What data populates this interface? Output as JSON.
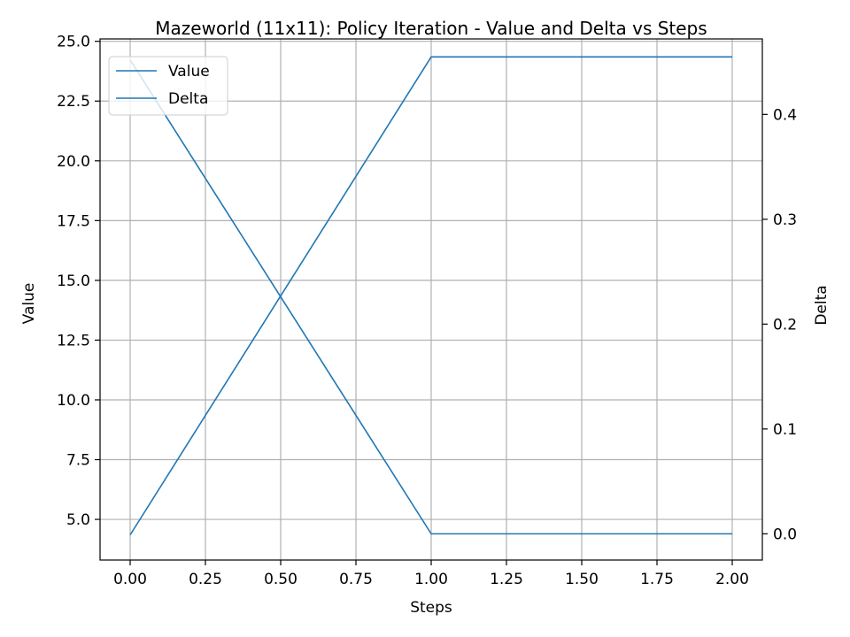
{
  "chart_data": {
    "type": "line",
    "title": "Mazeworld (11x11): Policy Iteration - Value and Delta vs Steps",
    "xlabel": "Steps",
    "ylabel_left": "Value",
    "ylabel_right": "Delta",
    "xlim": [
      -0.1,
      2.1
    ],
    "ylim_left": [
      3.3,
      25.1
    ],
    "ylim_right": [
      -0.025,
      0.472
    ],
    "xticks": [
      "0.00",
      "0.25",
      "0.50",
      "0.75",
      "1.00",
      "1.25",
      "1.50",
      "1.75",
      "2.00"
    ],
    "yticks_left": [
      "5.0",
      "7.5",
      "10.0",
      "12.5",
      "15.0",
      "17.5",
      "20.0",
      "22.5",
      "25.0"
    ],
    "yticks_right": [
      "0.0",
      "0.1",
      "0.2",
      "0.3",
      "0.4"
    ],
    "grid": true,
    "legend_position": "top-left",
    "series": [
      {
        "name": "Value",
        "axis": "left",
        "color": "#1f77b4",
        "x": [
          0,
          1,
          2
        ],
        "y": [
          4.35,
          24.35,
          24.35
        ]
      },
      {
        "name": "Delta",
        "axis": "right",
        "color": "#1f77b4",
        "x": [
          0,
          1,
          2
        ],
        "y": [
          0.452,
          0.0,
          0.0
        ]
      }
    ]
  }
}
